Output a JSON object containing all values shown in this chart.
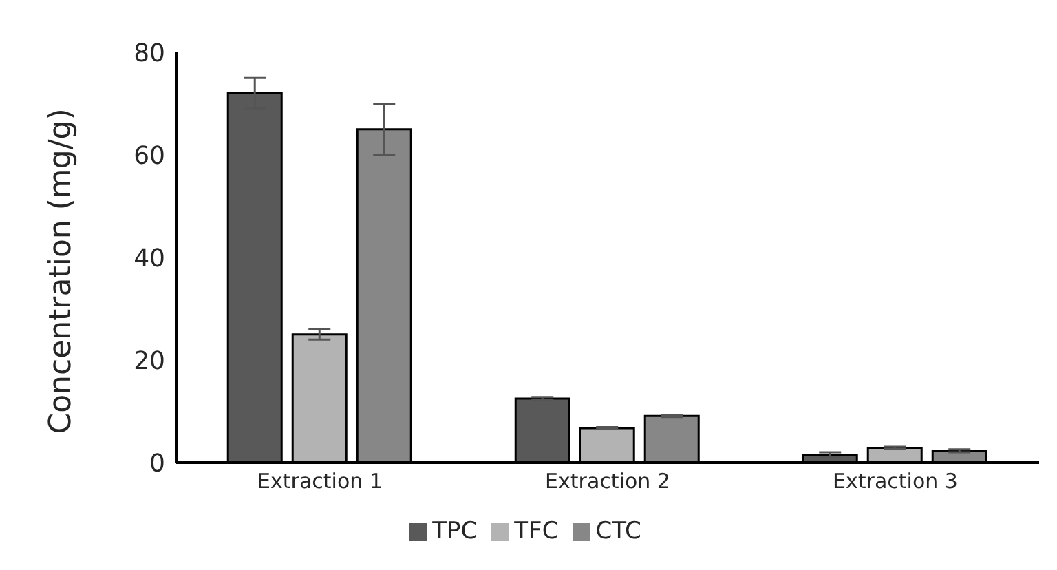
{
  "chart_data": {
    "type": "bar",
    "ylabel": "Concentration (mg/g)",
    "categories": [
      "Extraction 1",
      "Extraction 2",
      "Extraction 3"
    ],
    "series": [
      {
        "name": "TPC",
        "color": "#595959",
        "values": [
          72,
          12.5,
          1.5
        ],
        "errors": [
          3,
          0.3,
          0.5
        ]
      },
      {
        "name": "TFC",
        "color": "#b3b3b3",
        "values": [
          25,
          6.7,
          2.9
        ],
        "errors": [
          1,
          0.2,
          0.2
        ]
      },
      {
        "name": "CTC",
        "color": "#878787",
        "values": [
          65,
          9.1,
          2.3
        ],
        "errors": [
          5,
          0.2,
          0.3
        ]
      }
    ],
    "ylim": [
      0,
      80
    ],
    "yticks": [
      0,
      20,
      40,
      60,
      80
    ],
    "grid": false,
    "legend": "bottom"
  }
}
